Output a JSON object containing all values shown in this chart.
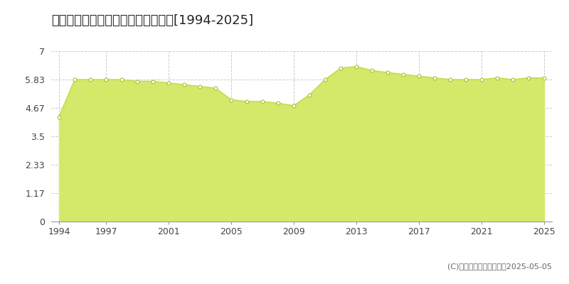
{
  "title": "東田川郡三川町横山　公示地価推移[1994-2025]",
  "years": [
    1994,
    1995,
    1996,
    1997,
    1998,
    1999,
    2000,
    2001,
    2002,
    2003,
    2004,
    2005,
    2006,
    2007,
    2008,
    2009,
    2010,
    2011,
    2012,
    2013,
    2014,
    2015,
    2016,
    2017,
    2018,
    2019,
    2020,
    2021,
    2022,
    2023,
    2024,
    2025
  ],
  "values": [
    4.3,
    5.83,
    5.83,
    5.83,
    5.83,
    5.76,
    5.76,
    5.69,
    5.62,
    5.55,
    5.48,
    5.0,
    4.93,
    4.93,
    4.86,
    4.76,
    5.2,
    5.83,
    6.3,
    6.37,
    6.2,
    6.12,
    6.04,
    5.97,
    5.9,
    5.83,
    5.83,
    5.83,
    5.9,
    5.83,
    5.9,
    5.9
  ],
  "yticks": [
    0,
    1.17,
    2.33,
    3.5,
    4.67,
    5.83,
    7
  ],
  "ytick_labels": [
    "0",
    "1.17",
    "2.33",
    "3.5",
    "4.67",
    "5.83",
    "7"
  ],
  "xticks": [
    1994,
    1997,
    2001,
    2005,
    2009,
    2013,
    2017,
    2021,
    2025
  ],
  "ylim": [
    0,
    7
  ],
  "xlim_left": 1993.5,
  "xlim_right": 2025.5,
  "line_color": "#c8dc50",
  "fill_color": "#d4e86a",
  "marker_facecolor": "#ffffff",
  "marker_edgecolor": "#a8c030",
  "bg_color": "#ffffff",
  "plot_bg_color": "#ffffff",
  "grid_color": "#cccccc",
  "copyright_text": "(C)土地価格ドットコム　2025-05-05",
  "title_fontsize": 13,
  "tick_fontsize": 9,
  "legend_fontsize": 9
}
